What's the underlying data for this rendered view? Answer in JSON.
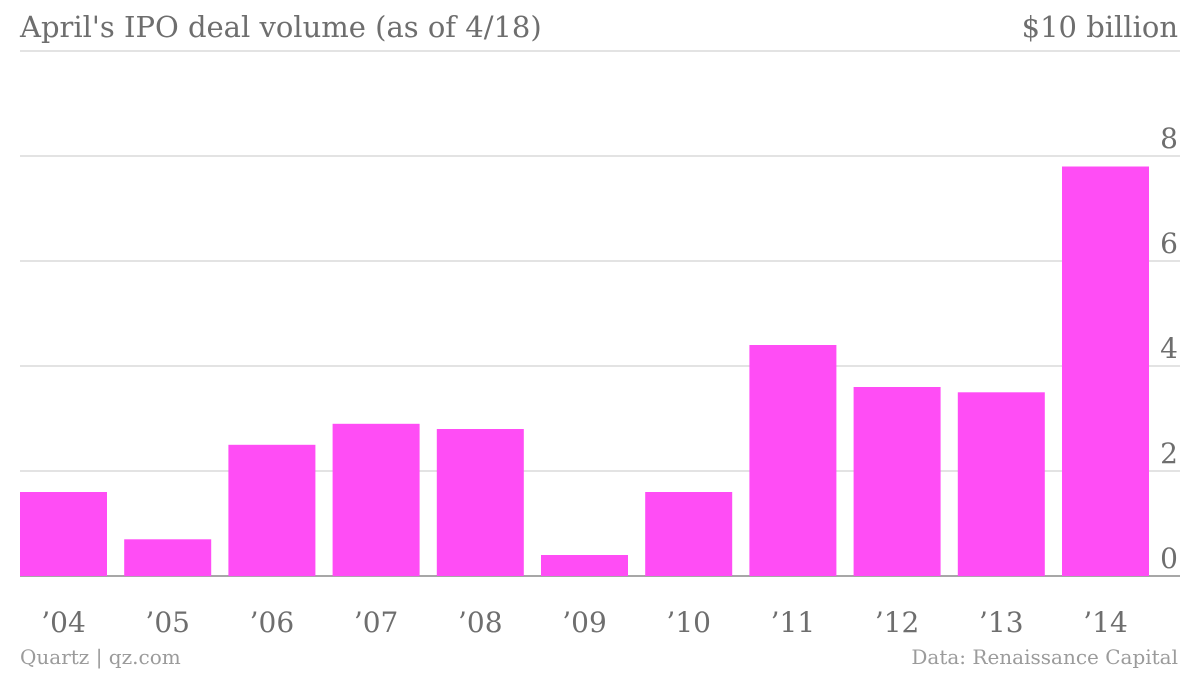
{
  "chart_data": {
    "type": "bar",
    "title": "April's IPO deal volume (as of 4/18)",
    "unit_label": "$10 billion",
    "categories": [
      "’04",
      "’05",
      "’06",
      "’07",
      "’08",
      "’09",
      "’10",
      "’11",
      "’12",
      "’13",
      "’14"
    ],
    "values": [
      1.6,
      0.7,
      2.5,
      2.9,
      2.8,
      0.4,
      1.6,
      4.4,
      3.6,
      3.5,
      7.8
    ],
    "ylim": [
      0,
      8
    ],
    "yticks": [
      0,
      2,
      4,
      6,
      8
    ],
    "grid": true,
    "bar_color": "#ff4df5",
    "source": "Data: Renaissance Capital",
    "credit": "Quartz | qz.com"
  }
}
